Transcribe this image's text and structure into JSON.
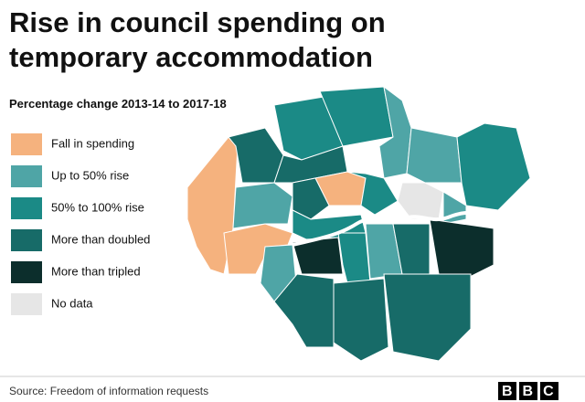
{
  "title": "Rise in council spending on temporary accommodation",
  "subtitle": "Percentage change 2013-14 to 2017-18",
  "legend": [
    {
      "label": "Fall in spending",
      "color": "#f5b27e"
    },
    {
      "label": "Up to 50% rise",
      "color": "#4fa5a6"
    },
    {
      "label": "50% to 100% rise",
      "color": "#1b8a86"
    },
    {
      "label": "More than doubled",
      "color": "#176b68"
    },
    {
      "label": "More than tripled",
      "color": "#0c2e2c"
    },
    {
      "label": "No data",
      "color": "#e6e6e6"
    }
  ],
  "source": "Source: Freedom of information requests",
  "logo": "BBC"
}
